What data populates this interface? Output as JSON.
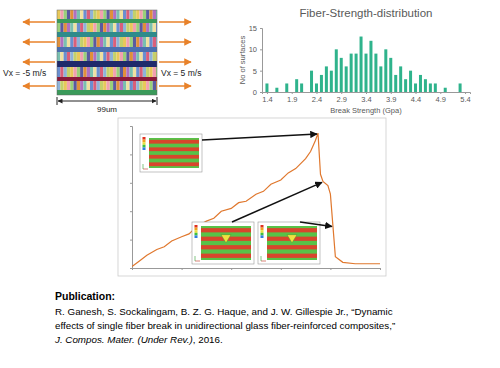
{
  "chart_data": [
    {
      "type": "bar",
      "title": "Fiber-Strength-distribution",
      "x_label": "Break Strength (Gpa)",
      "y_label": "No of surfaces",
      "x": [
        1.4,
        1.6,
        1.8,
        2.0,
        2.1,
        2.3,
        2.4,
        2.5,
        2.6,
        2.7,
        2.8,
        2.9,
        3.0,
        3.1,
        3.2,
        3.3,
        3.4,
        3.5,
        3.6,
        3.7,
        3.8,
        3.9,
        4.0,
        4.1,
        4.2,
        4.3,
        4.4,
        4.5,
        4.6,
        4.7,
        4.8,
        5.0,
        5.3
      ],
      "values": [
        2,
        1,
        2,
        3,
        2,
        5,
        2,
        4,
        6,
        5,
        10,
        8,
        6,
        9,
        9,
        13,
        9,
        12,
        9,
        6,
        10,
        8,
        4,
        6,
        3,
        5,
        2,
        4,
        3,
        2,
        2,
        1,
        2
      ],
      "color": "#2fb38c",
      "xlim": [
        1.3,
        5.5
      ],
      "xticks": [
        1.4,
        1.9,
        2.4,
        2.9,
        3.4,
        3.9,
        4.4,
        4.9,
        5.4
      ],
      "ylim": [
        0,
        15
      ],
      "yticks": [
        0,
        5,
        10,
        15
      ],
      "grid": false
    },
    {
      "type": "line",
      "x": [
        0,
        0.3,
        0.6,
        1.0,
        1.3,
        1.6,
        2.0,
        2.3,
        2.6,
        3.0,
        3.3,
        3.6,
        4.0,
        4.3,
        4.6,
        5.0,
        5.3,
        5.6,
        6.0,
        6.3,
        6.6,
        7.0,
        7.2,
        7.4,
        7.5,
        7.6,
        7.7,
        7.9,
        8.0,
        8.1,
        8.2,
        8.5,
        9.0,
        9.5,
        10.0
      ],
      "values": [
        1,
        5,
        9,
        13,
        15,
        19,
        22,
        24,
        29,
        33,
        35,
        40,
        42,
        46,
        47,
        52,
        54,
        59,
        62,
        67,
        70,
        77,
        82,
        90,
        95,
        66,
        61,
        58,
        52,
        30,
        8,
        4,
        3,
        3,
        3
      ],
      "color": "#e0782e",
      "xlim": [
        0,
        10
      ],
      "xticks": [
        0,
        2,
        4,
        6,
        8,
        10
      ],
      "ylim": [
        0,
        100
      ],
      "yticks": [
        0,
        20,
        40,
        60,
        80,
        100
      ],
      "tick_labels": false,
      "grid": false
    }
  ],
  "diagram": {
    "left_label": "Vx = -5 m/s",
    "right_label": "Vx = 5 m/s",
    "width_label": "99um"
  },
  "publication": {
    "heading": "Publication:",
    "line1": "R. Ganesh, S. Sockalingam, B. Z. G. Haque, and J. W. Gillespie Jr., “Dynamic",
    "line2": "effects of single fiber break in unidirectional glass fiber-reinforced composites,”",
    "journal": "J. Compos. Mater. (Under Rev.)",
    "tail": ", 2016."
  }
}
